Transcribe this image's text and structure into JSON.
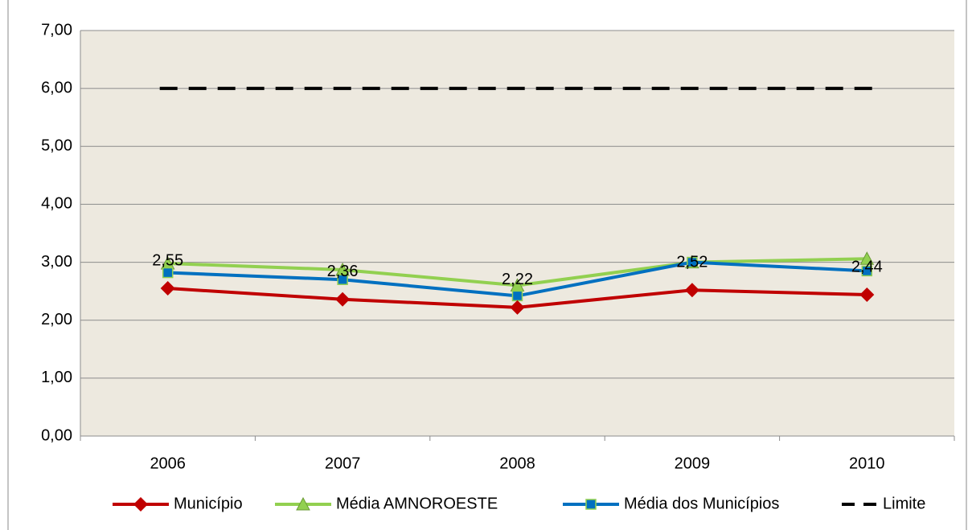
{
  "chart_data": {
    "type": "line",
    "categories": [
      "2006",
      "2007",
      "2008",
      "2009",
      "2010"
    ],
    "series": [
      {
        "name": "Município",
        "color": "#c00000",
        "marker": "diamond",
        "values": [
          2.55,
          2.36,
          2.22,
          2.52,
          2.44
        ],
        "value_labels": [
          "2,55",
          "2,36",
          "2,22",
          "2,52",
          "2,44"
        ]
      },
      {
        "name": "Média AMNOROESTE",
        "color": "#92d050",
        "marker": "triangle",
        "values": [
          2.98,
          2.87,
          2.6,
          3.0,
          3.06
        ]
      },
      {
        "name": "Média dos Municípios",
        "color": "#0070c0",
        "marker": "square",
        "values": [
          2.82,
          2.7,
          2.42,
          3.0,
          2.85
        ]
      },
      {
        "name": "Limite",
        "color": "#000000",
        "marker": "none",
        "dashed": true,
        "values": [
          6,
          6,
          6,
          6,
          6
        ]
      }
    ],
    "ylim": [
      0,
      7
    ],
    "yticks": [
      {
        "value": 0,
        "label": "0,00"
      },
      {
        "value": 1,
        "label": "1,00"
      },
      {
        "value": 2,
        "label": "2,00"
      },
      {
        "value": 3,
        "label": "3,00"
      },
      {
        "value": 4,
        "label": "4,00"
      },
      {
        "value": 5,
        "label": "5,00"
      },
      {
        "value": 6,
        "label": "6,00"
      },
      {
        "value": 7,
        "label": "7,00"
      }
    ],
    "grid": true,
    "legend": "bottom",
    "plot_background": "#ede9df"
  }
}
